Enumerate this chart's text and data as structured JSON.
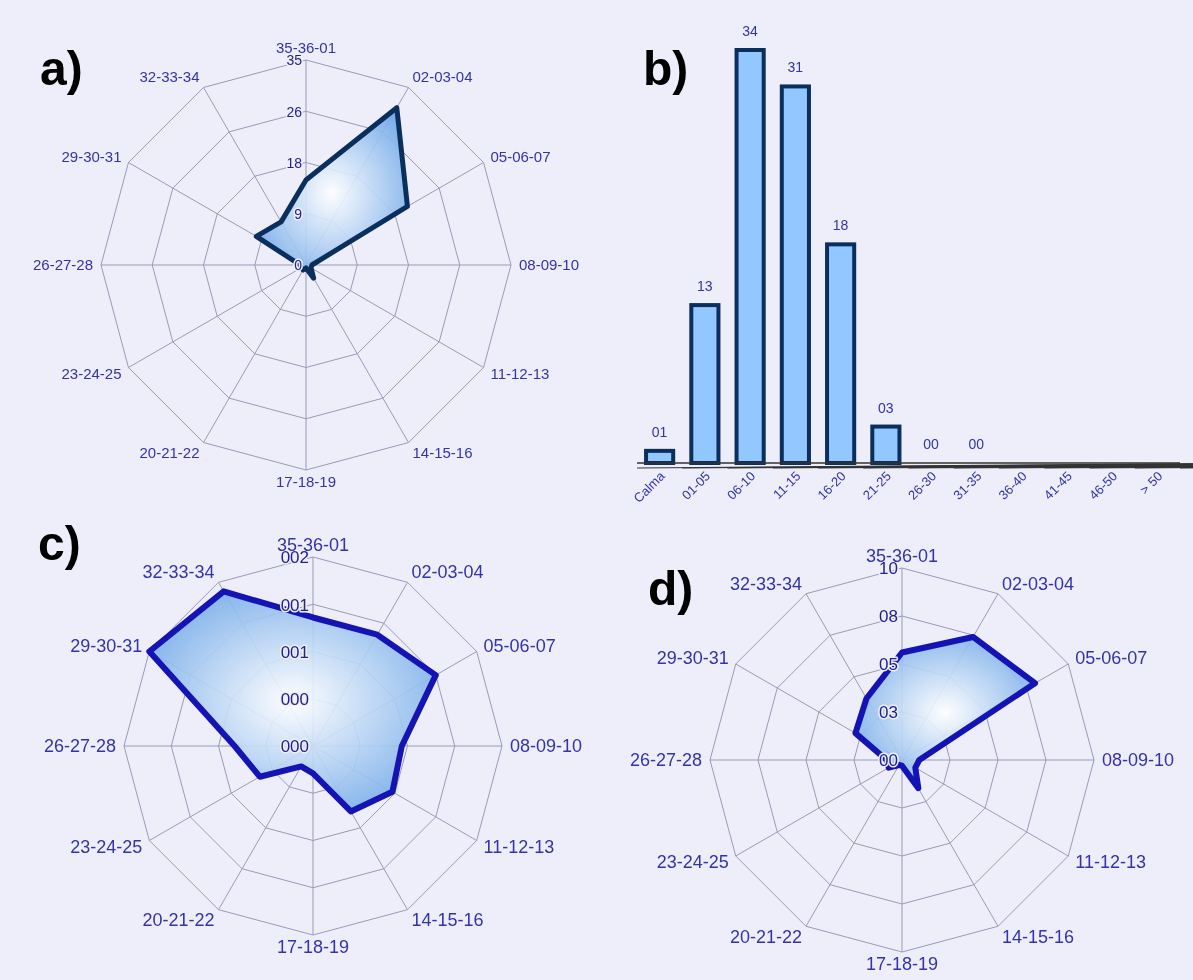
{
  "chart_data": [
    {
      "type": "radar",
      "title": "a)",
      "categories": [
        "35-36-01",
        "02-03-04",
        "05-06-07",
        "08-09-10",
        "11-12-13",
        "14-15-16",
        "17-18-19",
        "20-21-22",
        "23-24-25",
        "26-27-28",
        "29-30-31",
        "32-33-34"
      ],
      "series": [
        {
          "color": "#0a2f5c",
          "values": [
            14.5,
            31,
            20,
            1,
            1,
            2.6,
            0.5,
            1,
            1,
            1,
            9.8,
            8.5
          ]
        }
      ],
      "ylim": [
        0,
        35
      ],
      "yticks": [
        0,
        {
          "value": 8.75,
          "label": "9"
        },
        {
          "value": 17.5,
          "label": "18"
        },
        {
          "value": 26.25,
          "label": "26"
        },
        35
      ],
      "grid": true
    },
    {
      "type": "bar",
      "title": "b)",
      "categories": [
        "Calma",
        "01-05",
        "06-10",
        "11-15",
        "16-20",
        "21-25",
        "26-30",
        "31-35",
        "36-40",
        "41-45",
        "46-50",
        "> 50"
      ],
      "values": [
        1,
        13,
        34,
        31,
        18,
        3,
        0,
        0,
        null,
        null,
        null,
        null
      ],
      "value_labels": [
        "01",
        "13",
        "34",
        "31",
        "18",
        "03",
        "00",
        "00",
        null,
        null,
        null,
        null
      ],
      "color": "#92c8ff"
    },
    {
      "type": "radar",
      "title": "c)",
      "categories": [
        "35-36-01",
        "02-03-04",
        "05-06-07",
        "08-09-10",
        "11-12-13",
        "14-15-16",
        "17-18-19",
        "20-21-22",
        "23-24-25",
        "26-27-28",
        "29-30-31",
        "32-33-34"
      ],
      "series": [
        {
          "color": "#1414b4",
          "values": [
            1.36,
            1.36,
            1.5,
            0.94,
            0.97,
            0.8,
            0.29,
            0.25,
            0.65,
            0.83,
            2.0,
            1.89
          ]
        }
      ],
      "ylim": [
        0,
        2
      ],
      "yticks": [
        {
          "value": 0,
          "label": "000"
        },
        {
          "value": 0.5,
          "label": "000"
        },
        {
          "value": 1,
          "label": "001"
        },
        {
          "value": 1.5,
          "label": "001"
        },
        {
          "value": 2,
          "label": "002"
        }
      ],
      "grid": true
    },
    {
      "type": "radar",
      "title": "d)",
      "categories": [
        "35-36-01",
        "02-03-04",
        "05-06-07",
        "08-09-10",
        "11-12-13",
        "14-15-16",
        "17-18-19",
        "20-21-22",
        "23-24-25",
        "26-27-28",
        "29-30-31",
        "32-33-34"
      ],
      "series": [
        {
          "color": "#1414b4",
          "values": [
            5.6,
            7.4,
            8.0,
            0.9,
            0.8,
            1.7,
            0.3,
            0.3,
            0.8,
            0.8,
            2.8,
            3.7
          ]
        }
      ],
      "ylim": [
        0,
        10
      ],
      "yticks": [
        {
          "value": 0,
          "label": "00"
        },
        {
          "value": 2.5,
          "label": "03"
        },
        {
          "value": 5,
          "label": "05"
        },
        {
          "value": 7.5,
          "label": "08"
        },
        {
          "value": 10,
          "label": "10"
        }
      ],
      "grid": true
    }
  ]
}
